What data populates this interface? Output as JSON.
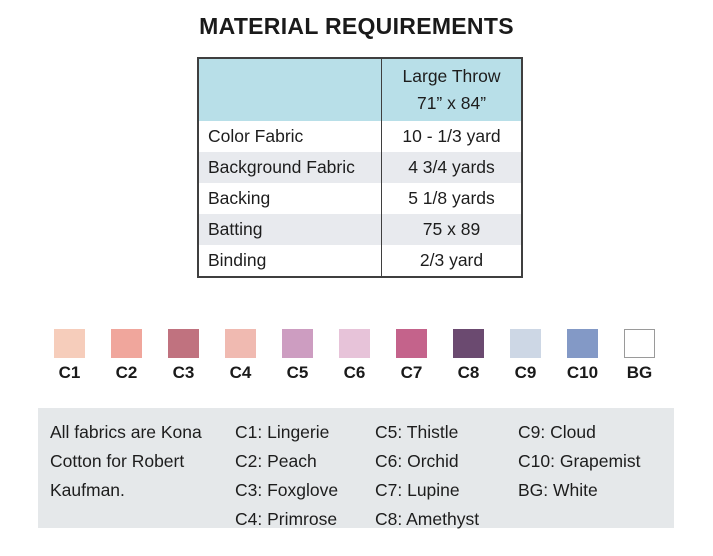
{
  "page": {
    "title": "MATERIAL REQUIREMENTS"
  },
  "table": {
    "header": {
      "size_label": "Large Throw",
      "size_dimensions": "71” x 84”",
      "header_bg": "#b8dfe8"
    },
    "alt_row_bg": "#e8eaee",
    "rows": [
      {
        "label": "Color Fabric",
        "value": "10 - 1/3 yard"
      },
      {
        "label": "Background Fabric",
        "value": "4 3/4 yards"
      },
      {
        "label": "Backing",
        "value": "5 1/8 yards"
      },
      {
        "label": "Batting",
        "value": "75 x 89"
      },
      {
        "label": "Binding",
        "value": "2/3 yard"
      }
    ]
  },
  "swatches": [
    {
      "code": "C1",
      "color": "#f6cdbb"
    },
    {
      "code": "C2",
      "color": "#f0a69c"
    },
    {
      "code": "C3",
      "color": "#c0727f"
    },
    {
      "code": "C4",
      "color": "#f0bab1"
    },
    {
      "code": "C5",
      "color": "#cd9dc1"
    },
    {
      "code": "C6",
      "color": "#e7c3d9"
    },
    {
      "code": "C7",
      "color": "#c4638b"
    },
    {
      "code": "C8",
      "color": "#6b4a70"
    },
    {
      "code": "C9",
      "color": "#cdd7e5"
    },
    {
      "code": "C10",
      "color": "#8399c6"
    },
    {
      "code": "BG",
      "color": "#ffffff"
    }
  ],
  "legend": {
    "bg": "#e5e8ea",
    "note": "All fabrics are Kona Cotton for Robert Kaufman.",
    "columns": [
      [
        "C1: Lingerie",
        "C2: Peach",
        "C3: Foxglove",
        "C4: Primrose"
      ],
      [
        "C5: Thistle",
        "C6: Orchid",
        "C7: Lupine",
        "C8: Amethyst"
      ],
      [
        "C9: Cloud",
        "C10: Grapemist",
        "BG: White"
      ]
    ]
  }
}
